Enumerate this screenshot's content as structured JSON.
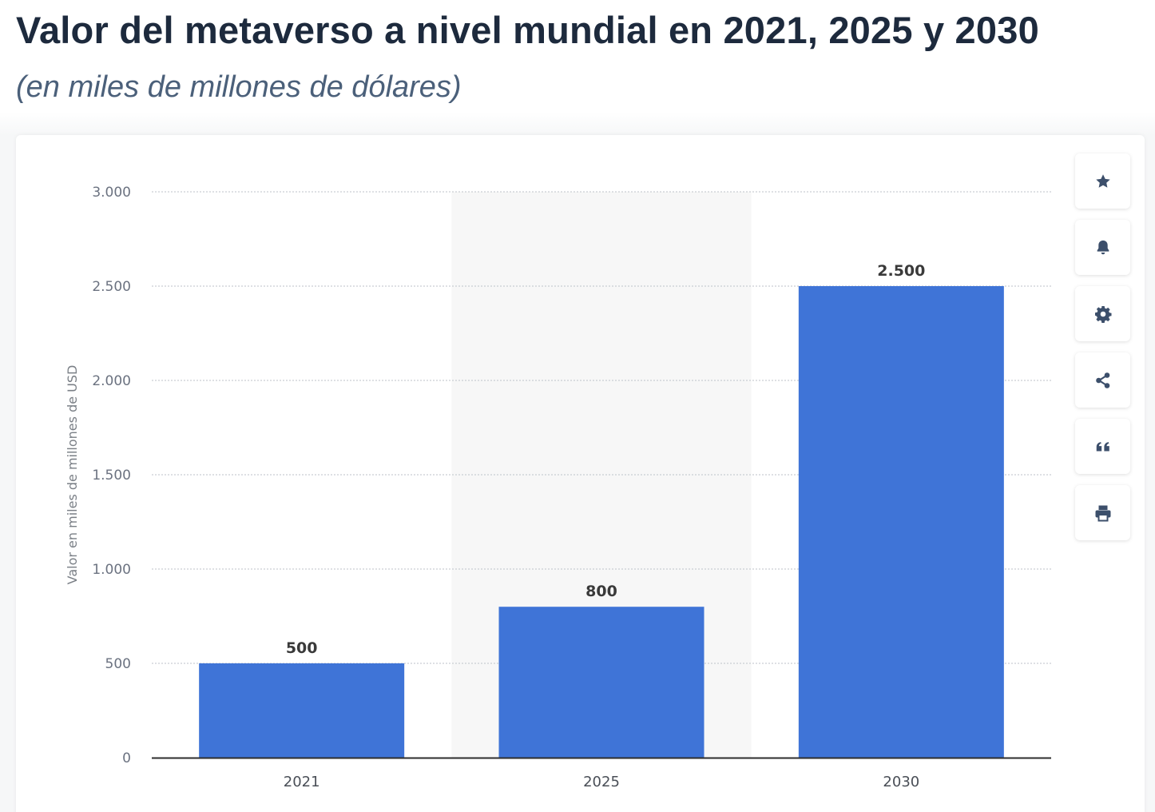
{
  "header": {
    "title": "Valor del metaverso a nivel mundial en 2021, 2025 y 2030",
    "subtitle": "(en miles de millones de dólares)"
  },
  "colors": {
    "bar": "#3f74d7",
    "grid": "#c9cdd3",
    "highlight_band": "#f7f7f7",
    "axis": "#2e2e2e",
    "tick_text": "#6b7280",
    "value_text": "#3a3a3a",
    "icon": "#3c4f6b"
  },
  "toolbar": {
    "buttons": [
      {
        "name": "favorite-button",
        "icon": "star-icon"
      },
      {
        "name": "notification-button",
        "icon": "bell-icon"
      },
      {
        "name": "settings-button",
        "icon": "gear-icon"
      },
      {
        "name": "share-button",
        "icon": "share-icon"
      },
      {
        "name": "cite-button",
        "icon": "quote-icon"
      },
      {
        "name": "print-button",
        "icon": "printer-icon"
      }
    ]
  },
  "chart_data": {
    "type": "bar",
    "title": "Valor del metaverso a nivel mundial en 2021, 2025 y 2030",
    "subtitle": "(en miles de millones de dólares)",
    "categories": [
      "2021",
      "2025",
      "2030"
    ],
    "values": [
      500,
      800,
      2500
    ],
    "value_labels": [
      "500",
      "800",
      "2.500"
    ],
    "xlabel": "",
    "ylabel": "Valor en miles de millones de USD",
    "ylim": [
      0,
      3000
    ],
    "yticks": [
      0,
      500,
      1000,
      1500,
      2000,
      2500,
      3000
    ],
    "ytick_labels": [
      "0",
      "500",
      "1.000",
      "1.500",
      "2.000",
      "2.500",
      "3.000"
    ],
    "highlighted_category": "2025",
    "grid": true,
    "legend": "none"
  }
}
